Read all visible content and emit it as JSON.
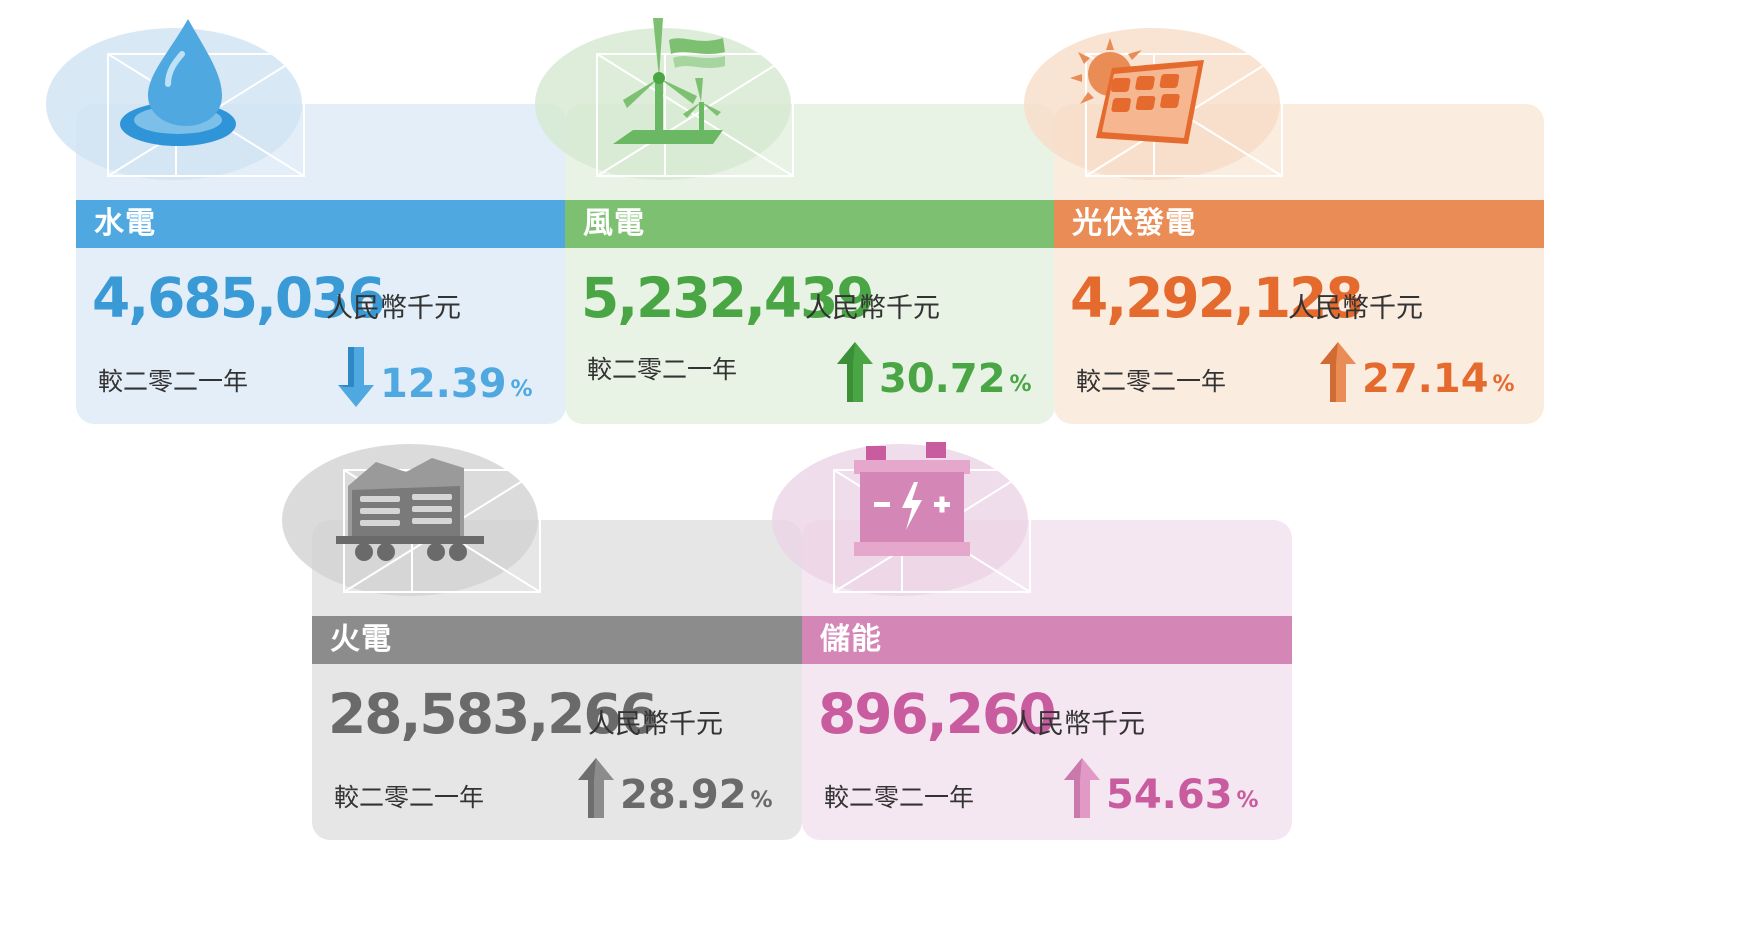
{
  "cards": [
    {
      "title": "水電",
      "value": "4,685,036",
      "unit": "人民幣千元",
      "compare": "較二零二一年",
      "change": "12.39",
      "pct": "%",
      "direction": "down",
      "icon": "water-drop-icon",
      "color": "#4fa9e0",
      "bg": "#e3eef8"
    },
    {
      "title": "風電",
      "value": "5,232,439",
      "unit": "人民幣千元",
      "compare": "較二零二一年",
      "change": "30.72",
      "pct": "%",
      "direction": "up",
      "icon": "wind-turbine-icon",
      "color": "#7ec072",
      "bg": "#e8f3e5",
      "text": "#4aa644"
    },
    {
      "title": "光伏發電",
      "value": "4,292,128",
      "unit": "人民幣千元",
      "compare": "較二零二一年",
      "change": "27.14",
      "pct": "%",
      "direction": "up",
      "icon": "solar-panel-icon",
      "color": "#e98c56",
      "bg": "#fbece0",
      "text": "#e56a2e"
    },
    {
      "title": "火電",
      "value": "28,583,266",
      "unit": "人民幣千元",
      "compare": "較二零二一年",
      "change": "28.92",
      "pct": "%",
      "direction": "up",
      "icon": "coal-cart-icon",
      "color": "#8c8c8c",
      "bg": "#e6e6e6",
      "text": "#6a6a6a"
    },
    {
      "title": "儲能",
      "value": "896,260",
      "unit": "人民幣千元",
      "compare": "較二零二一年",
      "change": "54.63",
      "pct": "%",
      "direction": "up",
      "icon": "battery-icon",
      "color": "#d486b6",
      "bg": "#f4e7f1",
      "text": "#c95b9f"
    }
  ]
}
